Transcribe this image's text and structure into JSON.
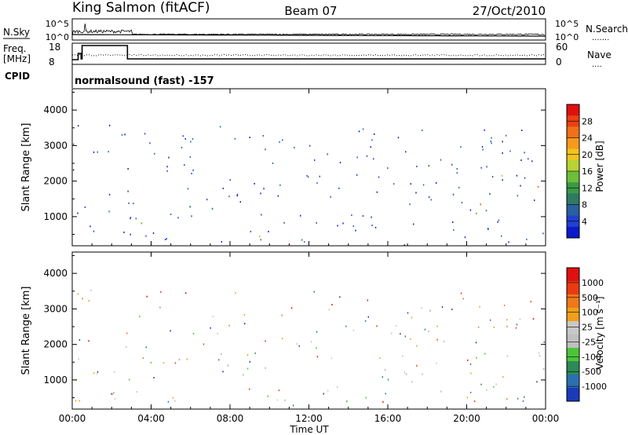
{
  "header": {
    "site": "King Salmon (fitACF)",
    "beam": "Beam 07",
    "date": "27/Oct/2010"
  },
  "top_panels": {
    "nsky_label": "N.Sky",
    "nsearch_label": "N.Search",
    "nsearch_dots": "·······",
    "freq_label_line1": "Freq.",
    "freq_label_line2": "[MHz]",
    "nave_label": "Nave",
    "nave_dots": "····",
    "cpid_label": "CPID",
    "cpid_value": "normalsound (fast) -157",
    "noise_left_ticks": [
      "10^5",
      "10^0"
    ],
    "noise_right_ticks": [
      "10^5",
      "10^0"
    ],
    "freq_left_ticks": [
      "18",
      "8"
    ],
    "nave_right_ticks": [
      "60",
      "0"
    ]
  },
  "chart_data": [
    {
      "type": "heatmap",
      "name": "power",
      "ylabel": "Slant Range [km]",
      "yticks": [
        1000,
        2000,
        3000,
        4000
      ],
      "ylim": [
        180,
        4600
      ],
      "xlim": [
        0,
        24
      ],
      "colorbar": {
        "label": "Power [dB]",
        "ticks": [
          "28",
          "24",
          "20",
          "16",
          "12",
          "8",
          "4"
        ],
        "colors": [
          "#0a1acc",
          "#2040d0",
          "#2a5fa0",
          "#2e7a62",
          "#3a9a46",
          "#6dbf3a",
          "#b9d236",
          "#f0c41c",
          "#f59a1c",
          "#f07018",
          "#ea4012",
          "#e01010"
        ]
      },
      "features": [
        {
          "t0": 0.0,
          "t1": 0.7,
          "r0": 900,
          "r1": 1700,
          "level": 5
        },
        {
          "t0": 2.8,
          "t1": 4.2,
          "r0": 1000,
          "r1": 1800,
          "level": 9
        },
        {
          "t0": 3.0,
          "t1": 5.3,
          "r0": 400,
          "r1": 1000,
          "level": 7
        },
        {
          "t0": 4.2,
          "t1": 9.5,
          "r0": 700,
          "r1": 1500,
          "level": 3
        },
        {
          "t0": 9.5,
          "t1": 10.8,
          "r0": 1000,
          "r1": 1500,
          "level": 3
        },
        {
          "t0": 12.2,
          "t1": 15.8,
          "r0": 850,
          "r1": 1500,
          "level": 3
        },
        {
          "t0": 15.8,
          "t1": 19.0,
          "r0": 1050,
          "r1": 1800,
          "level": 5
        },
        {
          "t0": 16.0,
          "t1": 19.0,
          "r0": 1800,
          "r1": 3200,
          "level": 2
        },
        {
          "t0": 18.7,
          "t1": 24.0,
          "r0": 900,
          "r1": 2300,
          "level": 11
        },
        {
          "t0": 19.0,
          "t1": 24.0,
          "r0": 1400,
          "r1": 2300,
          "level": 2
        },
        {
          "t0": 5.0,
          "t1": 18.0,
          "r0": 200,
          "r1": 600,
          "level": 6
        }
      ]
    },
    {
      "type": "heatmap",
      "name": "velocity",
      "ylabel": "Slant Range [km]",
      "xlabel": "Time UT",
      "xticks": [
        "00:00",
        "04:00",
        "08:00",
        "12:00",
        "16:00",
        "20:00",
        "00:00"
      ],
      "yticks": [
        1000,
        2000,
        3000,
        4000
      ],
      "ylim": [
        180,
        4600
      ],
      "xlim": [
        0,
        24
      ],
      "colorbar": {
        "label": "Velocity [m s⁻¹]",
        "ticks": [
          "1000",
          "500",
          "100",
          "25",
          "-25",
          "-100",
          "-500",
          "-1000"
        ],
        "colors": [
          "#1a3ab8",
          "#2c6fb0",
          "#2e8a58",
          "#4cc43a",
          "#c0c0c0",
          "#c8c8c8",
          "#f0a018",
          "#f07818",
          "#ea3a12",
          "#e01010"
        ]
      },
      "features": [
        {
          "t0": 3.4,
          "t1": 5.0,
          "r0": 800,
          "r1": 1700,
          "color": "orange"
        },
        {
          "t0": 3.0,
          "t1": 10.8,
          "r0": 400,
          "r1": 1800,
          "color": "grey"
        },
        {
          "t0": 12.2,
          "t1": 19.0,
          "r0": 300,
          "r1": 1600,
          "color": "grey"
        },
        {
          "t0": 16.0,
          "t1": 19.0,
          "r0": 1600,
          "r1": 3000,
          "color": "grey"
        },
        {
          "t0": 18.7,
          "t1": 24.0,
          "r0": 900,
          "r1": 2300,
          "color": "grey"
        },
        {
          "t0": 13.0,
          "t1": 17.5,
          "r0": 300,
          "r1": 800,
          "color": "green"
        }
      ]
    }
  ]
}
